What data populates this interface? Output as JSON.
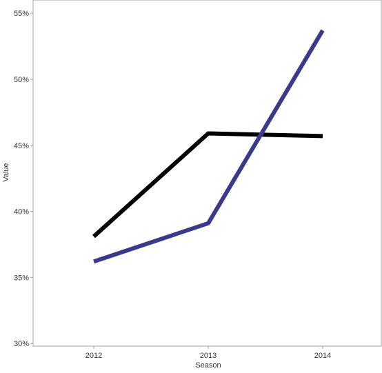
{
  "chart_data": {
    "type": "line",
    "title": "",
    "xlabel": "Season",
    "ylabel": "Value",
    "x": [
      "2012",
      "2013",
      "2014"
    ],
    "ylim": [
      0.298,
      0.56
    ],
    "yticks": [
      0.3,
      0.35,
      0.4,
      0.45,
      0.5,
      0.55
    ],
    "ytick_labels": [
      "30%",
      "35%",
      "40%",
      "45%",
      "50%",
      "55%"
    ],
    "grid": false,
    "legend": "none",
    "series": [
      {
        "color": "#000000",
        "values": [
          0.381,
          0.459,
          0.457
        ]
      },
      {
        "color": "#3a3a8c",
        "values": [
          0.362,
          0.391,
          0.537
        ]
      }
    ]
  }
}
